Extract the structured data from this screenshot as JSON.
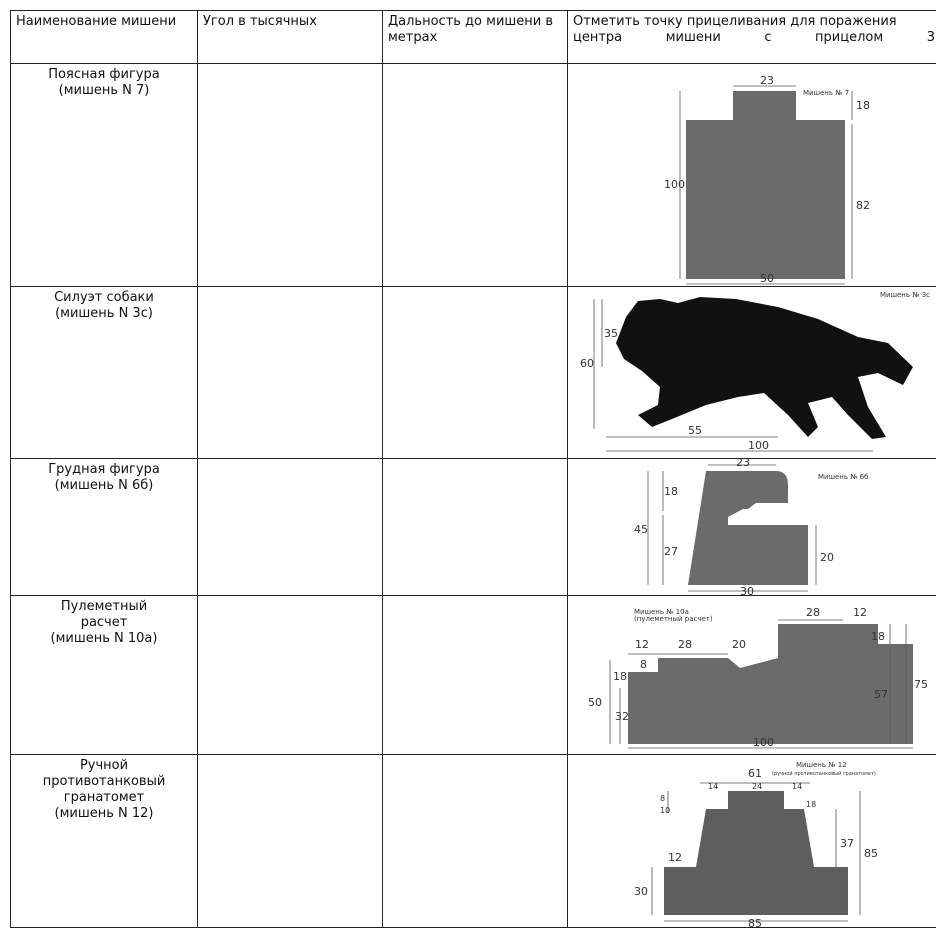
{
  "headers": {
    "name": "Наименование мишени",
    "angle": "Угол в тысячных",
    "distance": "Дальность до мишени в метрах",
    "aim": "Отметить точку прицеливания для поражения центра мишени с прицелом 3"
  },
  "rows": [
    {
      "name_lines": [
        "Поясная фигура",
        "(мишень N 7)"
      ],
      "diagram": {
        "caption": "Мишень № 7",
        "dims": [
          "23",
          "18",
          "100",
          "82",
          "50"
        ]
      }
    },
    {
      "name_lines": [
        "Силуэт собаки",
        "(мишень N 3с)"
      ],
      "diagram": {
        "caption": "Мишень № 3с",
        "dims": [
          "35",
          "60",
          "55",
          "100"
        ]
      }
    },
    {
      "name_lines": [
        "Грудная фигура",
        "(мишень N 6б)"
      ],
      "diagram": {
        "caption": "Мишень № 6б",
        "dims": [
          "23",
          "18",
          "45",
          "27",
          "20",
          "30"
        ]
      }
    },
    {
      "name_lines": [
        "Пулеметный",
        "расчет",
        "(мишень N 10а)"
      ],
      "diagram": {
        "caption": "Мишень № 10а",
        "subcaption": "(пулеметный расчет)",
        "dims": [
          "28",
          "12",
          "12",
          "28",
          "20",
          "18",
          "8",
          "18",
          "50",
          "32",
          "57",
          "75",
          "100"
        ]
      }
    },
    {
      "name_lines": [
        "Ручной",
        "противотанковый",
        "гранатомет",
        "(мишень N 12)"
      ],
      "diagram": {
        "caption": "Мишень № 12",
        "subcaption": "(ручной противотанковый гранатомет)",
        "dims": [
          "61",
          "14",
          "24",
          "14",
          "8",
          "10",
          "18",
          "37",
          "85",
          "12",
          "30",
          "85"
        ]
      }
    }
  ],
  "colors": {
    "target_fill": "#6b6b6b",
    "silhouette_fill": "#111111",
    "border": "#222222"
  }
}
